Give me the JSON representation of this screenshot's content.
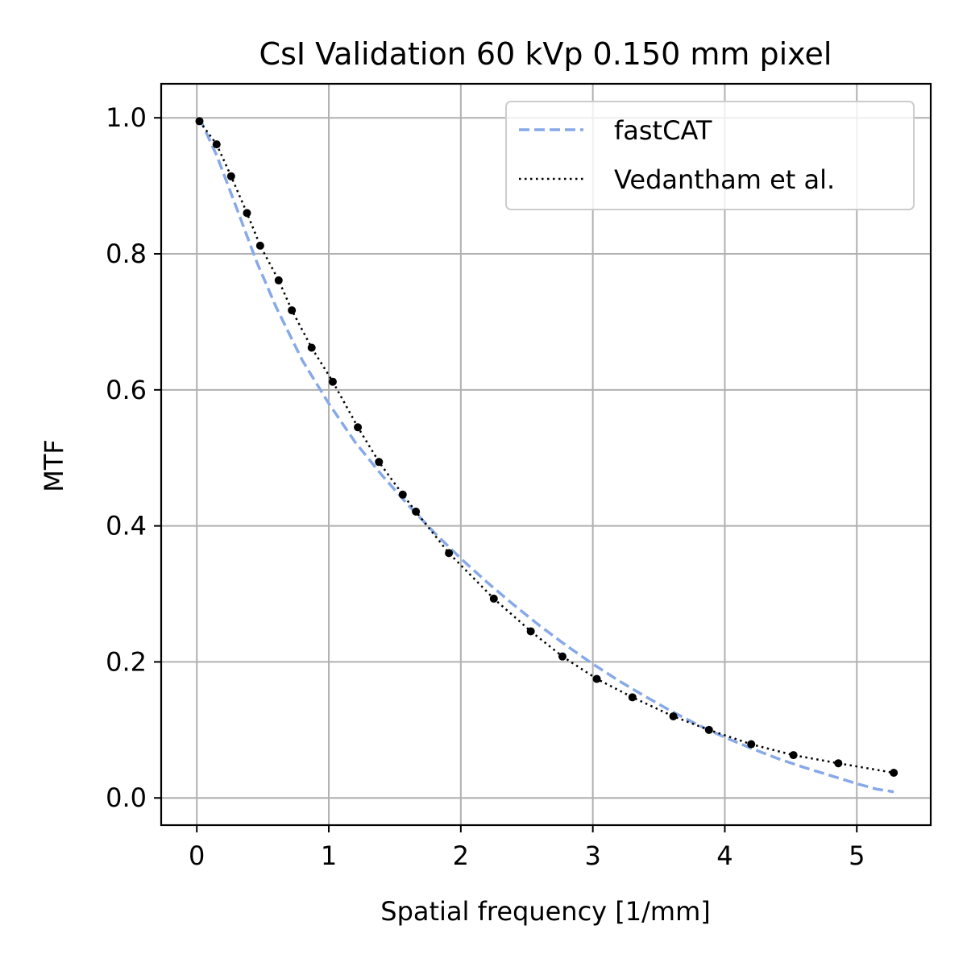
{
  "chart_data": {
    "type": "line",
    "title": "CsI Validation 60 kVp 0.150 mm pixel",
    "xlabel": "Spatial frequency [1/mm]",
    "ylabel": "MTF",
    "xlim": [
      -0.27,
      5.56
    ],
    "ylim": [
      -0.04,
      1.05
    ],
    "xticks": [
      0,
      1,
      2,
      3,
      4,
      5
    ],
    "xtick_labels": [
      "0",
      "1",
      "2",
      "3",
      "4",
      "5"
    ],
    "yticks": [
      0.0,
      0.2,
      0.4,
      0.6,
      0.8,
      1.0
    ],
    "ytick_labels": [
      "0.0",
      "0.2",
      "0.4",
      "0.6",
      "0.8",
      "1.0"
    ],
    "grid": true,
    "legend_position": "top-right",
    "series": [
      {
        "name": "fastCAT",
        "style": "dashed",
        "color": "#87A9E8",
        "x": [
          0.02,
          0.15,
          0.3,
          0.45,
          0.6,
          0.8,
          1.0,
          1.2,
          1.4,
          1.6,
          1.8,
          2.0,
          2.2,
          2.4,
          2.6,
          2.8,
          3.0,
          3.2,
          3.4,
          3.6,
          3.8,
          4.0,
          4.2,
          4.4,
          4.6,
          4.8,
          5.0,
          5.15,
          5.28
        ],
        "y": [
          1.0,
          0.945,
          0.868,
          0.79,
          0.722,
          0.643,
          0.58,
          0.523,
          0.475,
          0.431,
          0.39,
          0.352,
          0.317,
          0.284,
          0.253,
          0.224,
          0.197,
          0.172,
          0.149,
          0.127,
          0.107,
          0.089,
          0.073,
          0.058,
          0.045,
          0.033,
          0.021,
          0.013,
          0.009
        ]
      },
      {
        "name": "Vedantham et al.",
        "style": "dotted",
        "color": "#000000",
        "markers": true,
        "x": [
          0.02,
          0.15,
          0.26,
          0.38,
          0.48,
          0.62,
          0.72,
          0.87,
          1.03,
          1.22,
          1.38,
          1.56,
          1.66,
          1.91,
          2.25,
          2.53,
          2.77,
          3.03,
          3.3,
          3.61,
          3.88,
          4.2,
          4.52,
          4.86,
          5.28
        ],
        "y": [
          0.995,
          0.961,
          0.914,
          0.86,
          0.812,
          0.761,
          0.717,
          0.662,
          0.612,
          0.545,
          0.494,
          0.446,
          0.421,
          0.36,
          0.293,
          0.245,
          0.208,
          0.175,
          0.148,
          0.12,
          0.1,
          0.079,
          0.063,
          0.051,
          0.037
        ]
      }
    ]
  }
}
